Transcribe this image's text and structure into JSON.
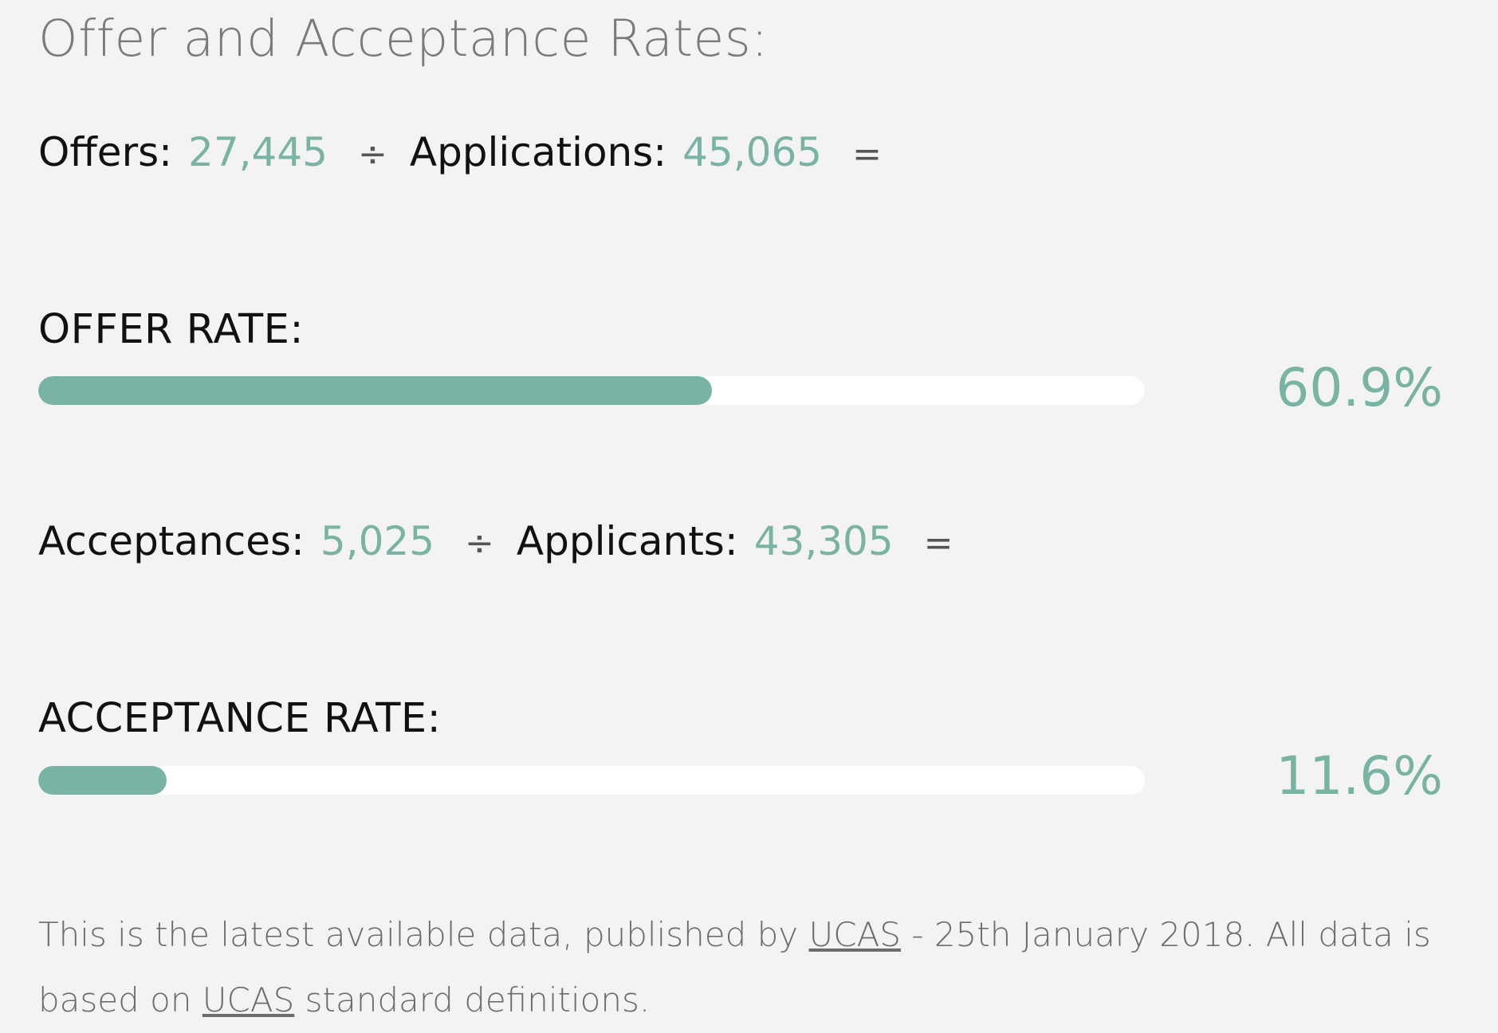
{
  "title": "Offer and Acceptance Rates:",
  "accent_color": "#78b3a4",
  "offers_formula": {
    "left_label": "Offers:",
    "left_value": "27,445",
    "operator": "÷",
    "right_label": "Applications:",
    "right_value": "45,065",
    "equals": "="
  },
  "offer_rate": {
    "label": "OFFER RATE:",
    "value_text": "60.9%",
    "fraction": 0.609
  },
  "acceptance_formula": {
    "left_label": "Acceptances:",
    "left_value": "5,025",
    "operator": "÷",
    "right_label": "Applicants:",
    "right_value": "43,305",
    "equals": "="
  },
  "acceptance_rate": {
    "label": "ACCEPTANCE RATE:",
    "value_text": "11.6%",
    "fraction": 0.116
  },
  "footnote": {
    "part1": "This is the latest available data, published by ",
    "link1": "UCAS",
    "part2": " - 25th January 2018. All data is based on ",
    "link2": "UCAS",
    "part3": " standard definitions."
  }
}
